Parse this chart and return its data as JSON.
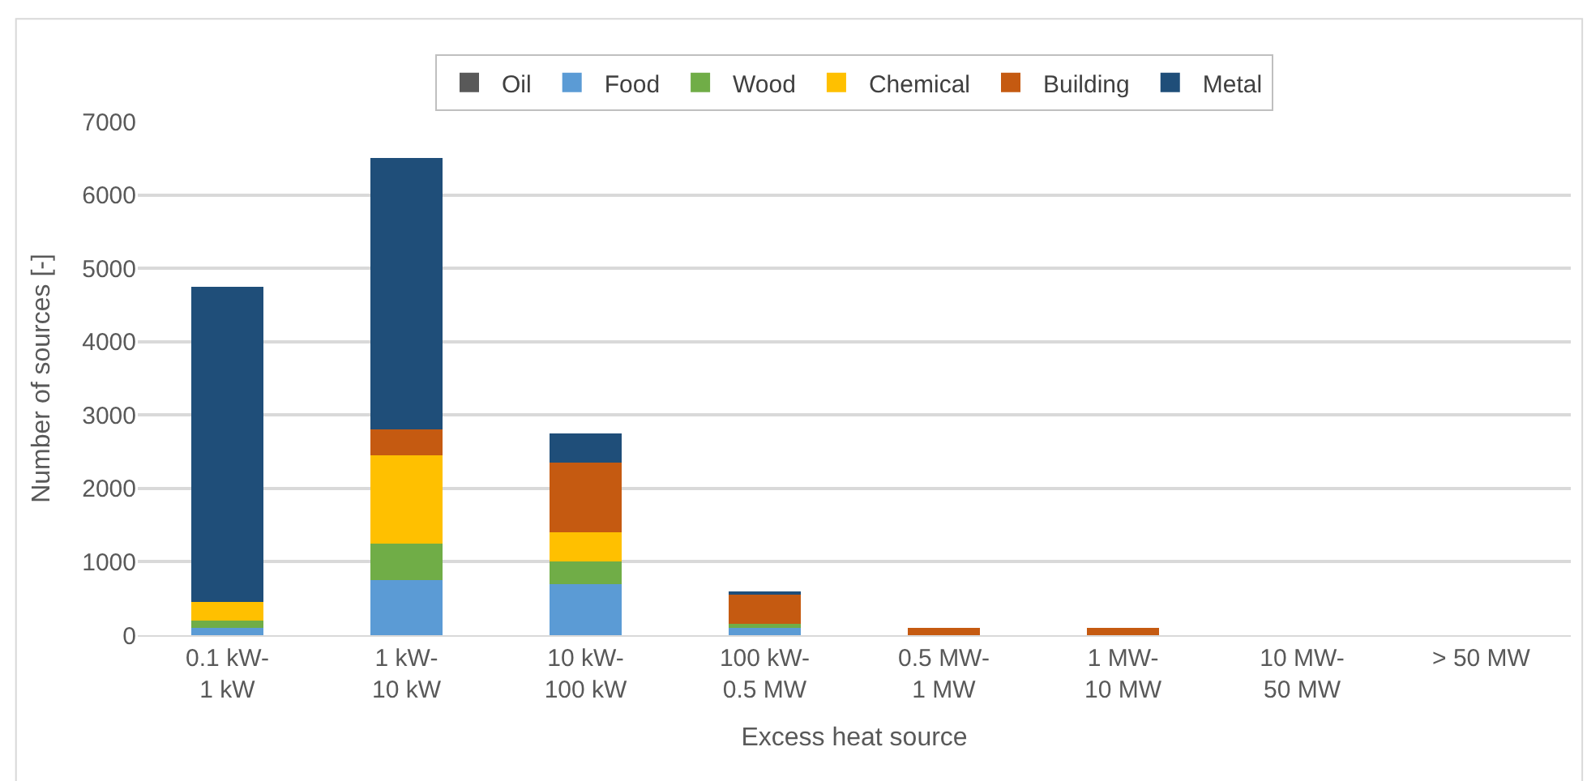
{
  "chart_data": {
    "type": "bar",
    "stacked": true,
    "xlabel": "Excess heat source",
    "ylabel": "Number of sources [-]",
    "categories": [
      "0.1 kW-\n1 kW",
      "1 kW-\n10 kW",
      "10 kW-\n100 kW",
      "100 kW-\n0.5 MW",
      "0.5 MW-\n1 MW",
      "1 MW-\n10 MW",
      "10 MW-\n50 MW",
      "> 50 MW"
    ],
    "series": [
      {
        "name": "Oil",
        "color": "#595959",
        "values": [
          0,
          0,
          0,
          0,
          0,
          0,
          0,
          0
        ]
      },
      {
        "name": "Food",
        "color": "#5b9bd5",
        "values": [
          100,
          750,
          700,
          100,
          null,
          null,
          0,
          0
        ]
      },
      {
        "name": "Wood",
        "color": "#70ad47",
        "values": [
          100,
          500,
          300,
          50,
          null,
          null,
          0,
          0
        ]
      },
      {
        "name": "Chemical",
        "color": "#ffc000",
        "values": [
          250,
          1200,
          400,
          null,
          null,
          null,
          0,
          0
        ]
      },
      {
        "name": "Building",
        "color": "#c55a11",
        "values": [
          null,
          350,
          950,
          400,
          100,
          100,
          0,
          0
        ]
      },
      {
        "name": "Metal",
        "color": "#1f4e79",
        "values": [
          4300,
          3700,
          400,
          50,
          null,
          null,
          0,
          0
        ]
      }
    ],
    "ylim": [
      0,
      7000
    ],
    "yticks": [
      0,
      1000,
      2000,
      3000,
      4000,
      5000,
      6000,
      7000
    ],
    "grid": "y",
    "legend": "top"
  }
}
